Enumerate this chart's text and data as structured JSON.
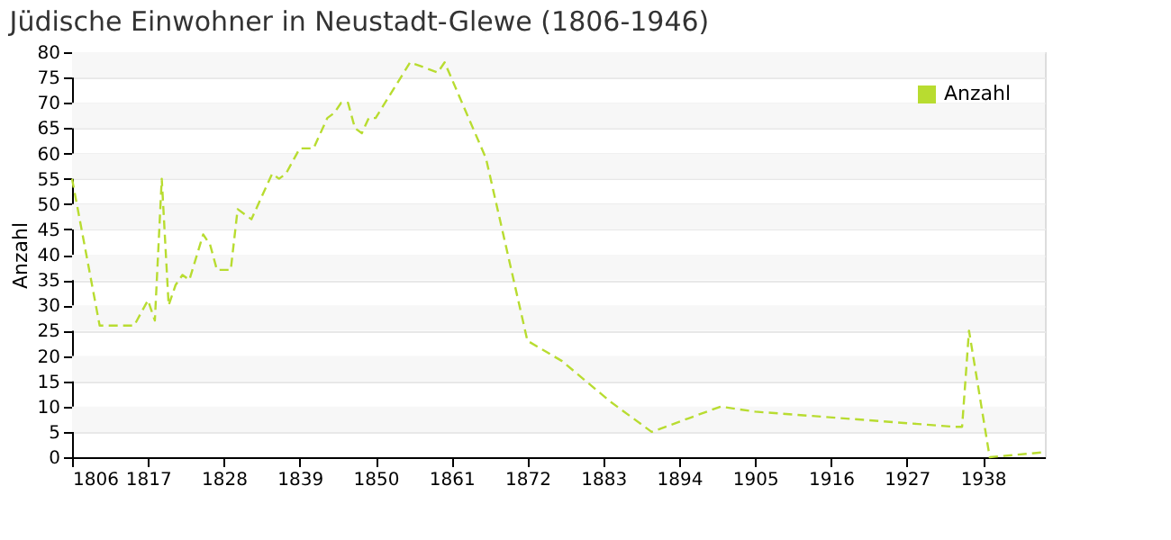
{
  "chart_data": {
    "type": "line",
    "title": "Jüdische Einwohner in Neustadt-Glewe (1806-1946)",
    "ylabel": "Anzahl",
    "x": [
      1806,
      1810,
      1815,
      1817,
      1818,
      1819,
      1820,
      1821,
      1822,
      1823,
      1825,
      1826,
      1827,
      1829,
      1830,
      1831,
      1832,
      1835,
      1836,
      1837,
      1839,
      1841,
      1843,
      1844,
      1845,
      1846,
      1847,
      1848,
      1849,
      1850,
      1855,
      1859,
      1860,
      1866,
      1872,
      1877,
      1884,
      1890,
      1900,
      1905,
      1934,
      1935,
      1936,
      1939,
      1947
    ],
    "series": [
      {
        "name": "Anzahl",
        "color": "#b8dc30",
        "values": [
          55,
          26,
          26,
          31,
          27,
          55,
          30,
          34,
          36,
          35,
          44,
          42,
          37,
          37,
          49,
          48,
          47,
          56,
          55,
          56,
          61,
          61,
          67,
          68,
          70,
          70,
          65,
          64,
          67,
          67,
          78,
          76,
          78,
          59,
          23,
          19,
          11,
          5,
          10,
          9,
          6,
          6,
          25,
          0,
          1
        ]
      }
    ],
    "xlim": [
      1806,
      1947
    ],
    "xticks": [
      1806,
      1817,
      1828,
      1839,
      1850,
      1861,
      1872,
      1883,
      1894,
      1905,
      1916,
      1927,
      1938
    ],
    "ylim": [
      0,
      80
    ],
    "yticks": [
      0,
      5,
      10,
      15,
      20,
      25,
      30,
      35,
      40,
      45,
      50,
      55,
      60,
      65,
      70,
      75,
      80
    ],
    "grid": "y",
    "legend": "top right",
    "line_style": "dashed",
    "marker": "none"
  }
}
